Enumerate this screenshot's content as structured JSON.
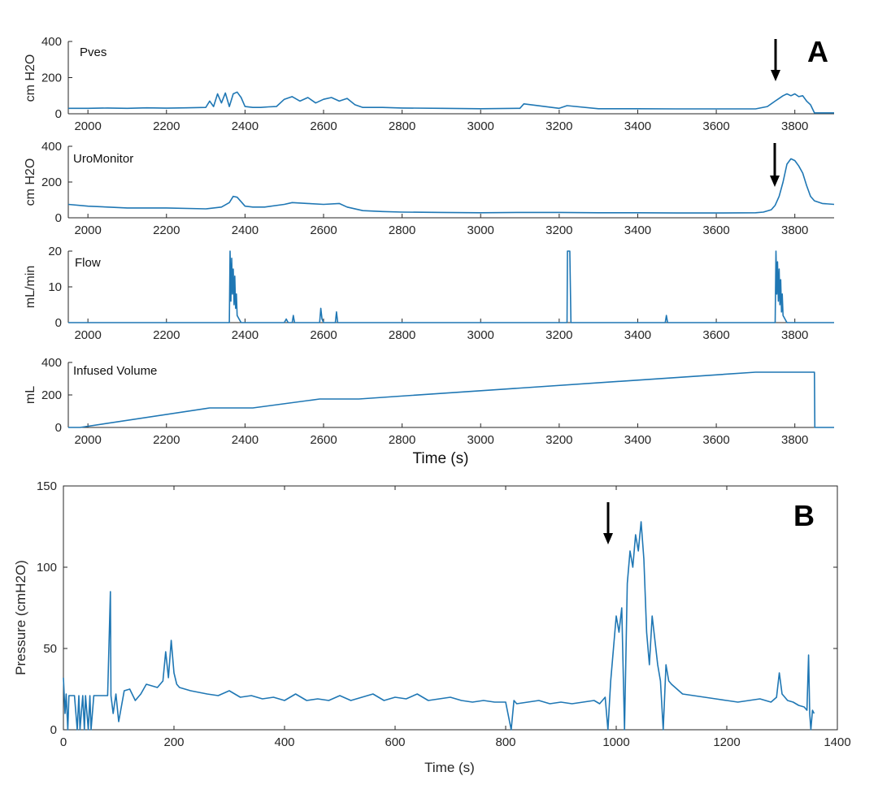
{
  "colors": {
    "series": "#1f77b4",
    "axis": "#262626",
    "arrow": "#000000"
  },
  "figure_A": {
    "letter": "A",
    "shared_xlabel": "Time (s)",
    "x_ticks": [
      "2000",
      "2200",
      "2400",
      "2600",
      "2800",
      "3000",
      "3200",
      "3400",
      "3600",
      "3800"
    ]
  },
  "figure_B": {
    "letter": "B",
    "xlabel": "Time (s)",
    "ylabel": "Pressure (cmH2O)",
    "x_ticks": [
      "0",
      "200",
      "400",
      "600",
      "800",
      "1000",
      "1200",
      "1400"
    ],
    "y_ticks": [
      "0",
      "50",
      "100",
      "150"
    ]
  },
  "chart_data": [
    {
      "id": "pves",
      "type": "line",
      "title": "Pves",
      "ylabel": "cm H2O",
      "xlim": [
        1950,
        3900
      ],
      "ylim": [
        0,
        400
      ],
      "y_ticks": [
        "0",
        "200",
        "400"
      ],
      "x": [
        1950,
        1960,
        2000,
        2050,
        2100,
        2150,
        2200,
        2250,
        2300,
        2310,
        2320,
        2330,
        2340,
        2350,
        2360,
        2370,
        2380,
        2390,
        2400,
        2420,
        2440,
        2460,
        2480,
        2500,
        2520,
        2540,
        2560,
        2580,
        2600,
        2620,
        2640,
        2660,
        2680,
        2700,
        2750,
        2800,
        2900,
        3000,
        3100,
        3110,
        3200,
        3220,
        3300,
        3400,
        3500,
        3600,
        3700,
        3730,
        3750,
        3760,
        3770,
        3780,
        3790,
        3800,
        3810,
        3820,
        3830,
        3840,
        3850,
        3900
      ],
      "values": [
        30,
        30,
        30,
        32,
        30,
        33,
        31,
        33,
        35,
        70,
        40,
        110,
        60,
        115,
        40,
        110,
        120,
        90,
        40,
        35,
        35,
        38,
        40,
        80,
        95,
        70,
        90,
        60,
        80,
        90,
        70,
        85,
        50,
        35,
        35,
        32,
        30,
        28,
        30,
        55,
        30,
        45,
        28,
        28,
        27,
        27,
        27,
        40,
        70,
        85,
        100,
        110,
        100,
        110,
        95,
        100,
        70,
        50,
        5,
        5
      ]
    },
    {
      "id": "uromonitor",
      "type": "line",
      "title": "UroMonitor",
      "ylabel": "cm H2O",
      "xlim": [
        1950,
        3900
      ],
      "ylim": [
        0,
        400
      ],
      "y_ticks": [
        "0",
        "200",
        "400"
      ],
      "x": [
        1950,
        2000,
        2100,
        2200,
        2300,
        2340,
        2360,
        2370,
        2380,
        2390,
        2400,
        2420,
        2450,
        2500,
        2520,
        2560,
        2600,
        2640,
        2660,
        2700,
        2750,
        2800,
        2900,
        3000,
        3100,
        3200,
        3300,
        3400,
        3500,
        3600,
        3700,
        3720,
        3740,
        3750,
        3760,
        3770,
        3780,
        3790,
        3800,
        3810,
        3820,
        3830,
        3840,
        3850,
        3870,
        3900
      ],
      "values": [
        75,
        65,
        55,
        55,
        50,
        60,
        85,
        120,
        115,
        90,
        65,
        60,
        60,
        75,
        85,
        80,
        75,
        80,
        60,
        40,
        35,
        32,
        30,
        28,
        30,
        30,
        28,
        28,
        27,
        27,
        28,
        32,
        45,
        70,
        120,
        200,
        300,
        330,
        320,
        290,
        250,
        180,
        120,
        95,
        80,
        75
      ]
    },
    {
      "id": "flow",
      "type": "line",
      "title": "Flow",
      "ylabel": "mL/min",
      "xlim": [
        1950,
        3900
      ],
      "ylim": [
        0,
        20
      ],
      "y_ticks": [
        "0",
        "10",
        "20"
      ],
      "x": [
        1950,
        2360,
        2362,
        2364,
        2366,
        2368,
        2370,
        2372,
        2374,
        2376,
        2378,
        2380,
        2385,
        2390,
        2400,
        2500,
        2505,
        2510,
        2520,
        2523,
        2526,
        2590,
        2593,
        2596,
        2600,
        2630,
        2633,
        2636,
        3220,
        3221,
        3224,
        3227,
        3230,
        3470,
        3473,
        3476,
        3750,
        3752,
        3754,
        3756,
        3758,
        3760,
        3762,
        3764,
        3766,
        3768,
        3770,
        3775,
        3780,
        3900
      ],
      "values": [
        0,
        0,
        20,
        6,
        18,
        8,
        15,
        5,
        13,
        4,
        8,
        2,
        1,
        0,
        0,
        0,
        1,
        0,
        0,
        2,
        0,
        0,
        4,
        1,
        0,
        0,
        3,
        0,
        0,
        20,
        20,
        20,
        0,
        0,
        2,
        0,
        0,
        20,
        8,
        17,
        6,
        15,
        5,
        12,
        3,
        8,
        2,
        1,
        0,
        0
      ]
    },
    {
      "id": "infused_volume",
      "type": "line",
      "title": "Infused Volume",
      "ylabel": "mL",
      "xlim": [
        1950,
        3900
      ],
      "ylim": [
        0,
        400
      ],
      "y_ticks": [
        "0",
        "200",
        "400"
      ],
      "x": [
        1950,
        1980,
        2310,
        2420,
        2590,
        2690,
        2780,
        3700,
        3850,
        3851,
        3900
      ],
      "values": [
        0,
        0,
        120,
        120,
        175,
        175,
        190,
        340,
        340,
        0,
        0
      ]
    },
    {
      "id": "pressure_b",
      "type": "line",
      "title": "",
      "xlabel": "Time (s)",
      "ylabel": "Pressure (cmH2O)",
      "xlim": [
        0,
        1400
      ],
      "ylim": [
        0,
        150
      ],
      "x": [
        0,
        3,
        5,
        8,
        10,
        20,
        25,
        28,
        30,
        35,
        38,
        40,
        45,
        48,
        50,
        55,
        60,
        70,
        80,
        85,
        86,
        90,
        95,
        100,
        110,
        120,
        130,
        140,
        150,
        170,
        180,
        185,
        190,
        195,
        200,
        205,
        210,
        230,
        260,
        280,
        300,
        320,
        340,
        360,
        380,
        400,
        420,
        440,
        460,
        480,
        500,
        520,
        540,
        560,
        580,
        600,
        620,
        640,
        660,
        680,
        700,
        720,
        740,
        760,
        780,
        800,
        810,
        815,
        820,
        840,
        860,
        880,
        900,
        920,
        940,
        960,
        970,
        980,
        985,
        990,
        995,
        1000,
        1005,
        1010,
        1015,
        1020,
        1025,
        1030,
        1035,
        1040,
        1045,
        1050,
        1055,
        1060,
        1065,
        1070,
        1075,
        1080,
        1085,
        1090,
        1095,
        1100,
        1110,
        1120,
        1140,
        1160,
        1180,
        1200,
        1220,
        1240,
        1260,
        1280,
        1290,
        1295,
        1300,
        1310,
        1320,
        1330,
        1340,
        1345,
        1348,
        1350,
        1352,
        1355,
        1358
      ],
      "values": [
        32,
        10,
        22,
        0,
        21,
        21,
        0,
        21,
        0,
        21,
        0,
        21,
        0,
        21,
        0,
        21,
        21,
        21,
        21,
        85,
        21,
        10,
        22,
        5,
        24,
        25,
        18,
        22,
        28,
        26,
        30,
        48,
        32,
        55,
        35,
        28,
        26,
        24,
        22,
        21,
        24,
        20,
        21,
        19,
        20,
        18,
        22,
        18,
        19,
        18,
        21,
        18,
        20,
        22,
        18,
        20,
        19,
        22,
        18,
        19,
        20,
        18,
        17,
        18,
        17,
        17,
        0,
        18,
        16,
        17,
        18,
        16,
        17,
        16,
        17,
        18,
        16,
        20,
        0,
        30,
        50,
        70,
        60,
        75,
        0,
        90,
        110,
        100,
        120,
        110,
        128,
        105,
        60,
        40,
        70,
        55,
        40,
        30,
        0,
        40,
        30,
        28,
        25,
        22,
        21,
        20,
        19,
        18,
        17,
        18,
        19,
        17,
        20,
        35,
        22,
        18,
        17,
        15,
        14,
        12,
        46,
        10,
        0,
        12,
        10
      ]
    }
  ]
}
